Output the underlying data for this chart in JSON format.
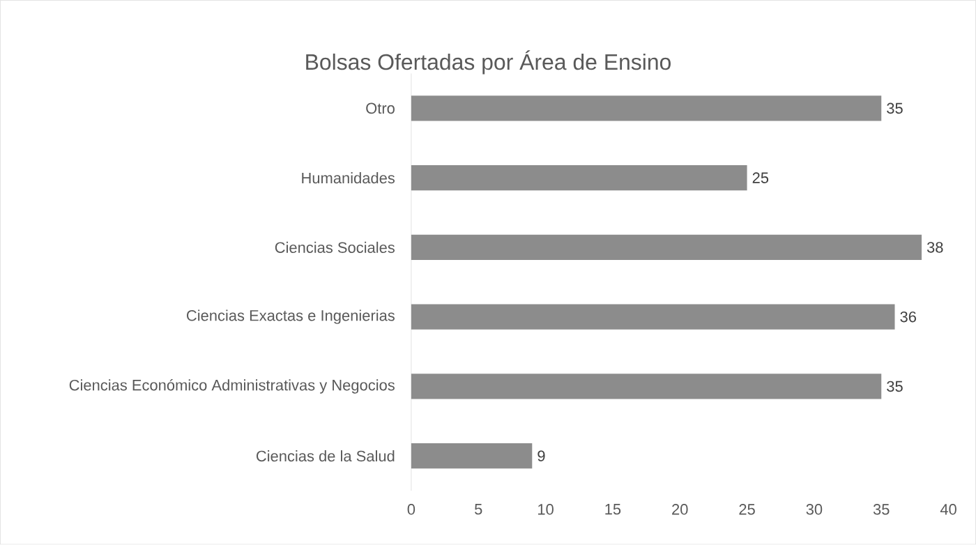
{
  "chart_data": {
    "type": "bar",
    "orientation": "horizontal",
    "title": "Bolsas Ofertadas por Área de Ensino",
    "categories": [
      "Otro",
      "Humanidades",
      "Ciencias Sociales",
      "Ciencias Exactas e Ingenierias",
      "Ciencias Económico Administrativas y Negocios",
      "Ciencias de la Salud"
    ],
    "values": [
      35,
      25,
      38,
      36,
      35,
      9
    ],
    "color": "#8c8c8c",
    "xlim": [
      0,
      40
    ],
    "xticks": [
      0,
      5,
      10,
      15,
      20,
      25,
      30,
      35,
      40
    ],
    "data_labels": true,
    "grid": false
  }
}
